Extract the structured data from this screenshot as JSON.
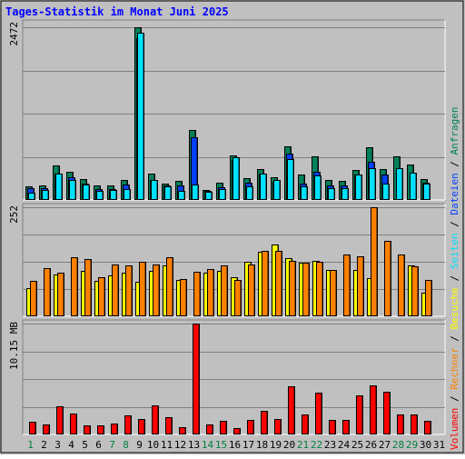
{
  "title": "Tages-Statistik im Monat Juni 2025",
  "colors": {
    "background": "#c0c0c0",
    "title": "#0000ff",
    "anfragen": "#00805c",
    "dateien": "#0040ff",
    "seiten": "#00e0ff",
    "besuche": "#ffff00",
    "rechner": "#ff8000",
    "volumen": "#ff0000",
    "weekday_label": "#000000",
    "weekend_label": "#008040"
  },
  "chart_data": {
    "type": "bar",
    "title": "Tages-Statistik im Monat Juni 2025",
    "categories": [
      "1",
      "2",
      "3",
      "4",
      "5",
      "6",
      "7",
      "8",
      "9",
      "10",
      "11",
      "12",
      "13",
      "14",
      "15",
      "16",
      "17",
      "18",
      "19",
      "20",
      "21",
      "22",
      "23",
      "24",
      "25",
      "26",
      "27",
      "28",
      "29",
      "30",
      "31"
    ],
    "weekend_days": [
      "1",
      "7",
      "8",
      "14",
      "15",
      "21",
      "22",
      "28",
      "29"
    ],
    "legend": [
      {
        "key": "volumen",
        "label": "Volumen"
      },
      {
        "key": "rechner",
        "label": "Rechner"
      },
      {
        "key": "besuche",
        "label": "Besuche"
      },
      {
        "key": "seiten",
        "label": "Seiten"
      },
      {
        "key": "dateien",
        "label": "Dateien"
      },
      {
        "key": "anfragen",
        "label": "Anfragen"
      }
    ],
    "separator": "/",
    "panels": [
      {
        "id": "hits",
        "axis_label": "2472",
        "max": 2472,
        "series": [
          {
            "name": "Anfragen",
            "key": "anfragen",
            "values": [
              195,
              210,
              490,
              400,
              300,
              205,
              205,
              285,
              2472,
              375,
              235,
              270,
              1005,
              145,
              245,
              640,
              315,
              440,
              320,
              765,
              360,
              620,
              280,
              270,
              425,
              760,
              445,
              630,
              505,
              305,
              0
            ]
          },
          {
            "name": "Dateien",
            "key": "dateien",
            "values": [
              175,
              170,
              375,
              320,
              230,
              150,
              155,
              215,
              2310,
              290,
              205,
              205,
              900,
              130,
              185,
              570,
              245,
              375,
              265,
              665,
              240,
              400,
              205,
              205,
              365,
              545,
              360,
              0,
              0,
              245,
              0
            ]
          },
          {
            "name": "Seiten",
            "key": "seiten",
            "values": [
              100,
              145,
              380,
              290,
              220,
              135,
              140,
              155,
              2390,
              280,
              200,
              130,
              220,
              120,
              155,
              615,
              200,
              375,
              290,
              585,
              195,
              355,
              175,
              170,
              370,
              460,
              230,
              455,
              395,
              230,
              0
            ]
          }
        ]
      },
      {
        "id": "visits",
        "axis_label": "252",
        "max": 252,
        "series": [
          {
            "name": "Besuche",
            "key": "besuche",
            "values": [
              65,
              0,
              97,
              0,
              105,
              81,
              95,
              100,
              80,
              105,
              118,
              84,
              0,
              100,
              106,
              90,
              126,
              150,
              165,
              135,
              123,
              129,
              108,
              0,
              108,
              89,
              0,
              0,
              118,
              54,
              0
            ]
          },
          {
            "name": "Rechner",
            "key": "rechner",
            "values": [
              81,
              111,
              100,
              137,
              132,
              90,
              119,
              118,
              126,
              119,
              136,
              87,
              102,
              110,
              118,
              84,
              120,
              151,
              151,
              128,
              123,
              126,
              108,
              143,
              138,
              252,
              175,
              143,
              116,
              84,
              0
            ]
          }
        ]
      },
      {
        "id": "volume",
        "axis_label": "10.15 MB",
        "max": 10.15,
        "series": [
          {
            "name": "Volumen",
            "key": "volumen",
            "values": [
              1.15,
              0.95,
              2.6,
              1.9,
              0.85,
              0.8,
              1.0,
              1.75,
              1.4,
              2.7,
              1.6,
              0.65,
              10.15,
              0.95,
              1.25,
              0.55,
              1.3,
              2.2,
              1.4,
              4.4,
              1.8,
              3.85,
              1.3,
              1.3,
              3.6,
              4.5,
              3.9,
              1.85,
              1.8,
              1.25,
              0
            ]
          }
        ]
      }
    ]
  }
}
